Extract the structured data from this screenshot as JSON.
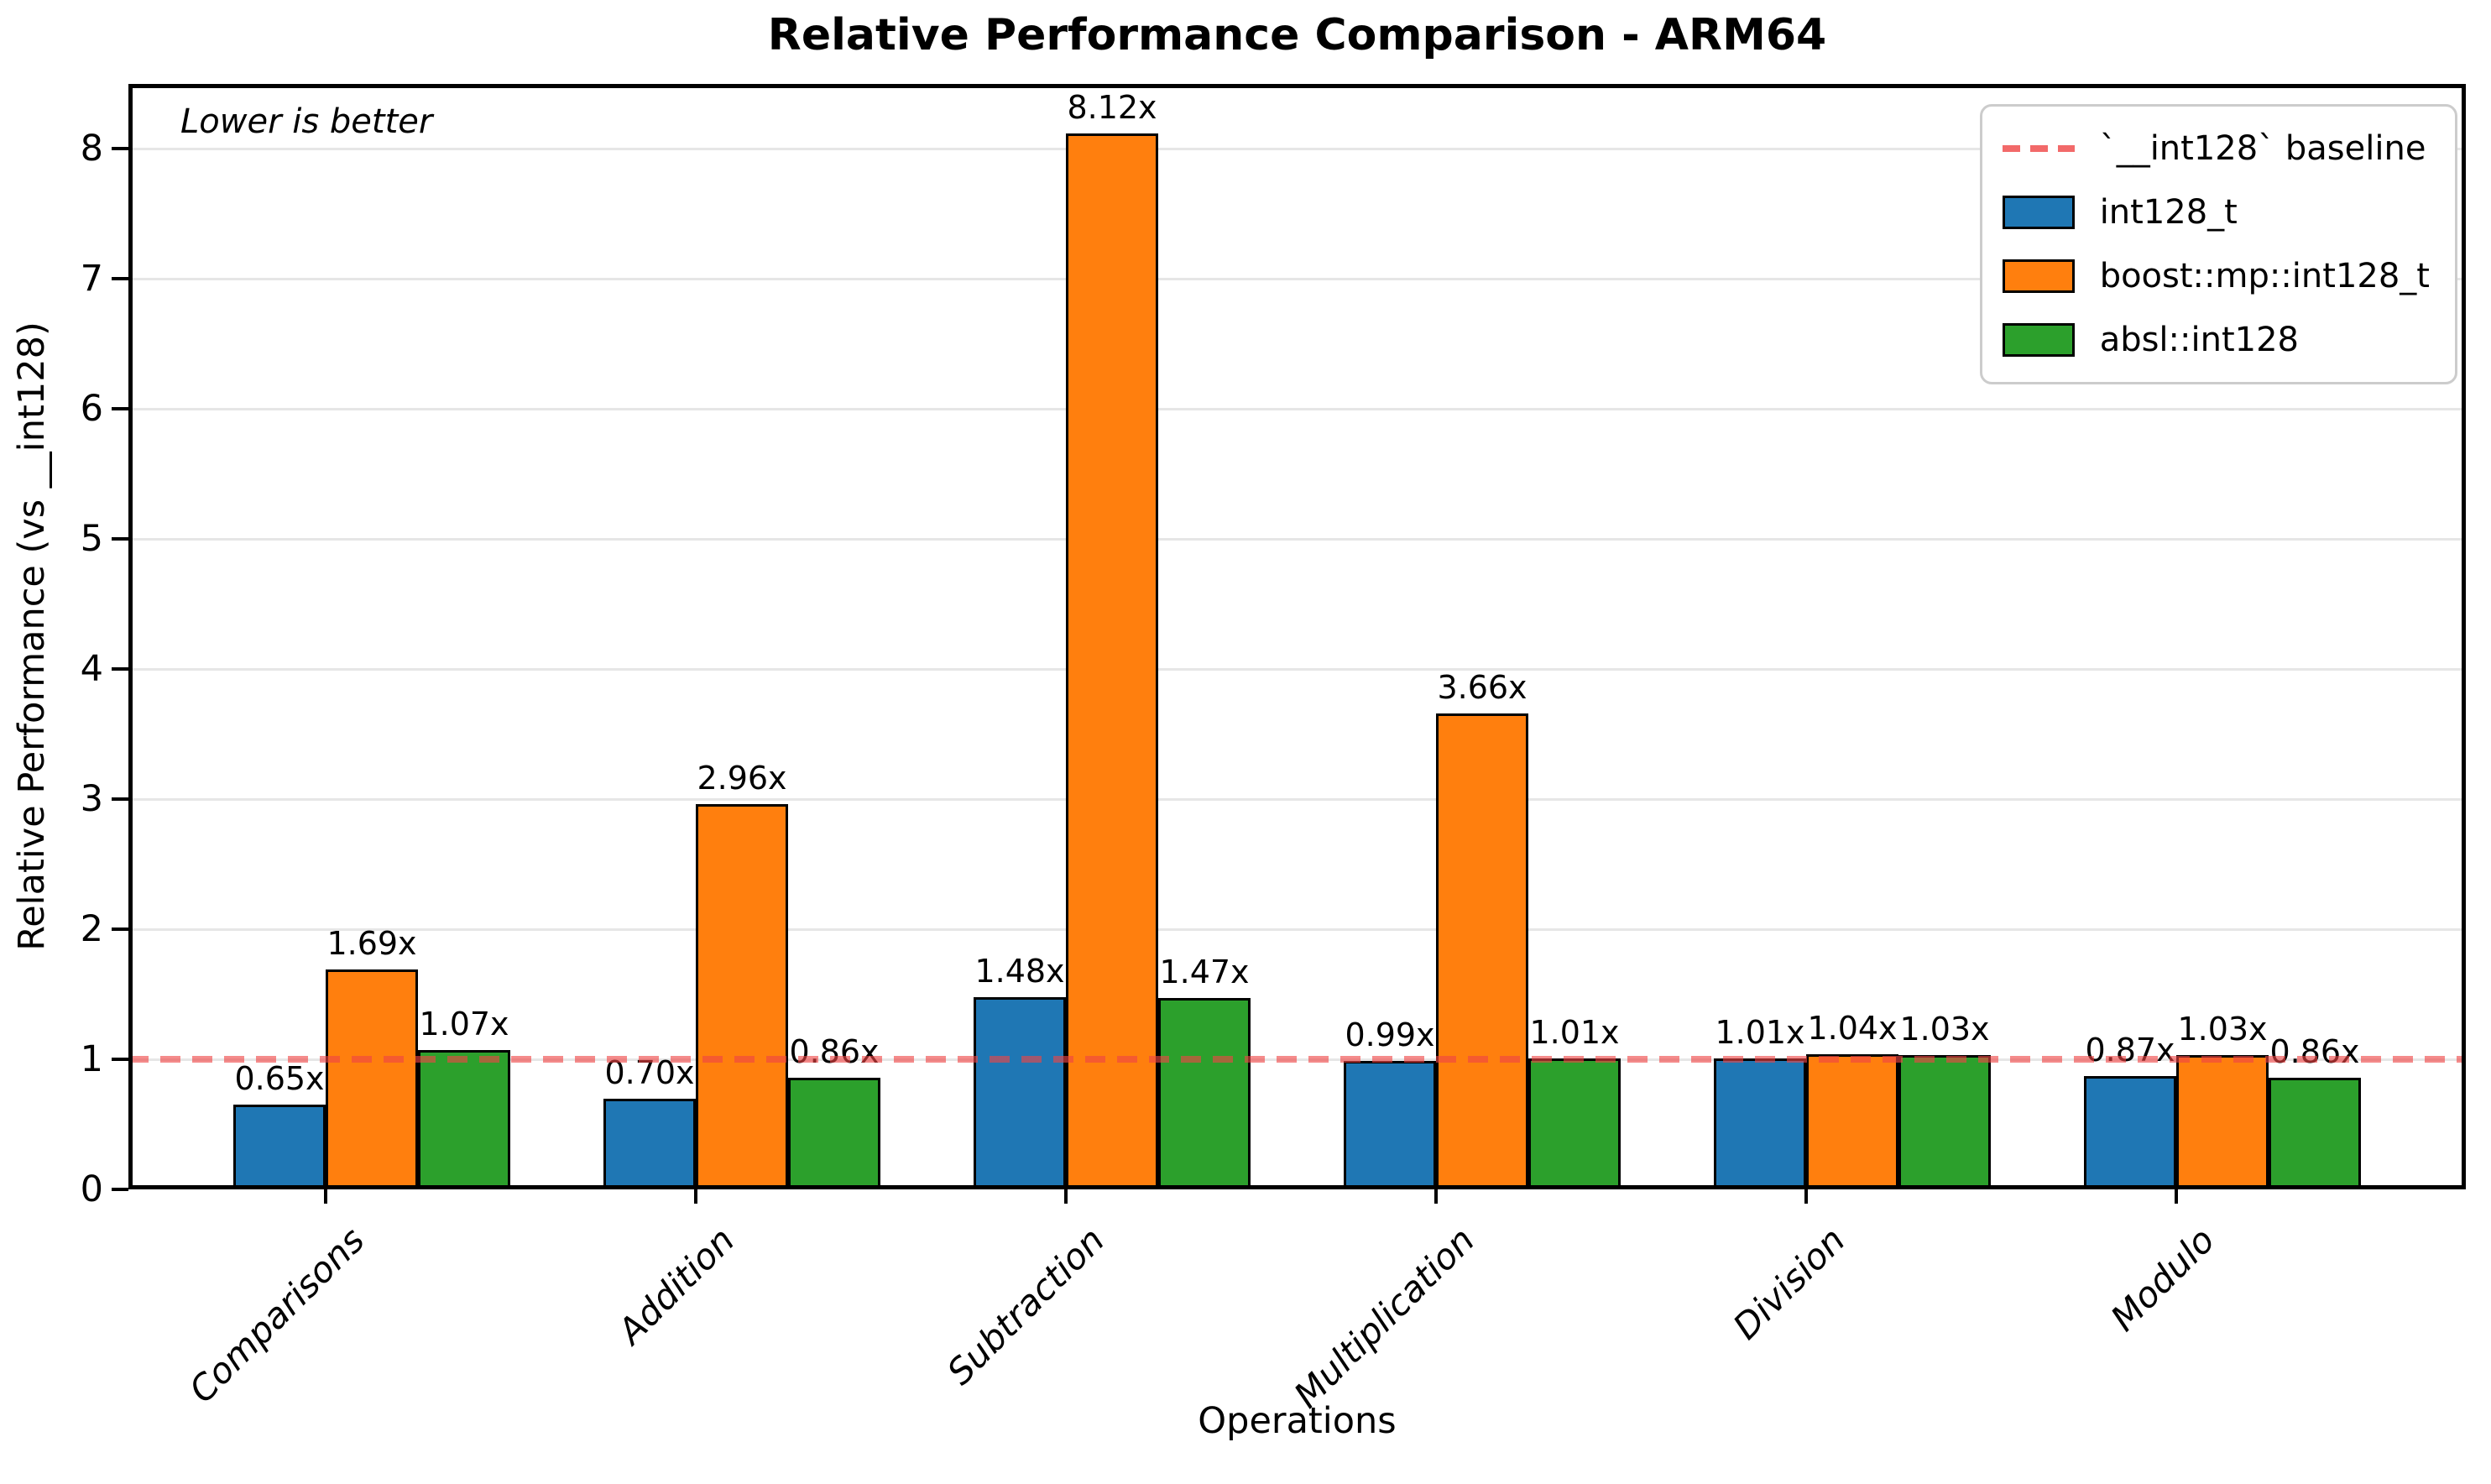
{
  "chart_data": {
    "type": "bar",
    "title": "Relative Performance Comparison - ARM64",
    "xlabel": "Operations",
    "ylabel": "Relative Performance (vs __int128)",
    "annotation": "Lower is better",
    "categories": [
      "Comparisons",
      "Addition",
      "Subtraction",
      "Multiplication",
      "Division",
      "Modulo"
    ],
    "series": [
      {
        "name": "int128_t",
        "color": "#1f77b4",
        "values": [
          0.65,
          0.7,
          1.48,
          0.99,
          1.01,
          0.87
        ]
      },
      {
        "name": "boost::mp::int128_t",
        "color": "#ff7f0e",
        "values": [
          1.69,
          2.96,
          8.12,
          3.66,
          1.04,
          1.03
        ]
      },
      {
        "name": "absl::int128",
        "color": "#2ca02c",
        "values": [
          1.07,
          0.86,
          1.47,
          1.01,
          1.03,
          0.86
        ]
      }
    ],
    "value_label_suffix": "x",
    "baseline": {
      "value": 1,
      "label": "`__int128` baseline",
      "color": "#ef4444"
    },
    "yticks": [
      0,
      1,
      2,
      3,
      4,
      5,
      6,
      7,
      8
    ],
    "ylim": [
      0,
      8.5
    ],
    "grid": true,
    "legend_position": "upper right",
    "bar_edge_color": "#000000",
    "background_color": "#ffffff"
  }
}
